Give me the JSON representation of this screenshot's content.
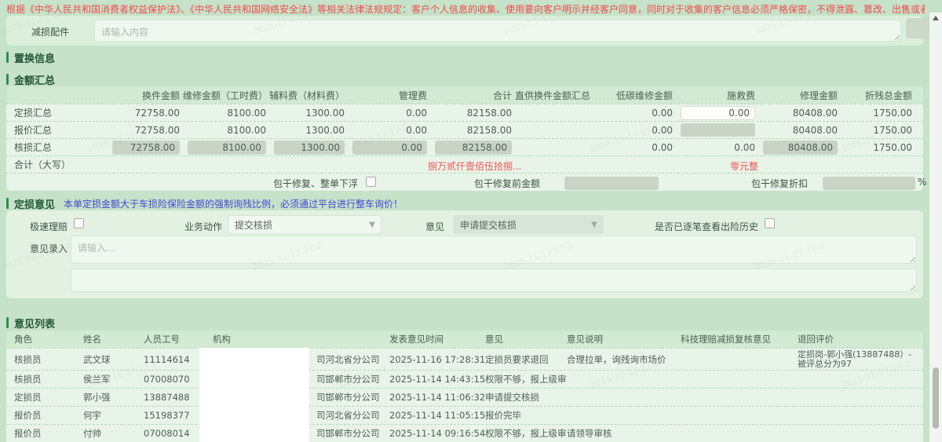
{
  "watermark": "2025-11-17 17:2",
  "top_notice": "根据《中华人民共和国消费者权益保护法》、《中华人民共和国网络安全法》等相关法律法规规定：客户个人信息的收集、使用要向客户明示并经客户同意，同时对于收集的客户信息必须严格保密，不得泄露、篡改、出售或者非法向他人提供。",
  "damage_parts": {
    "label": "减损配件",
    "placeholder": "请输入内容"
  },
  "sections": {
    "replace_info": "置换信息",
    "amount_summary": "金额汇总",
    "loss_opinion": "定损意见",
    "opinion_list": "意见列表"
  },
  "amount_summary": {
    "headers": [
      "",
      "换件金额",
      "维修金额（工时费）",
      "辅料费（材料费）",
      "管理费",
      "合计",
      "直供换件金额汇总",
      "低碳维修金额",
      "施救费",
      "修理金额",
      "折残总金额"
    ],
    "rows": [
      {
        "label": "定损汇总",
        "values": [
          "72758.00",
          "8100.00",
          "1300.00",
          "0.00",
          "82158.00",
          "",
          "0.00",
          "0.00",
          "80408.00",
          "1750.00"
        ],
        "styles": [
          "plain",
          "plain",
          "plain",
          "plain",
          "plain",
          "empty",
          "plain",
          "input",
          "plain",
          "plain"
        ]
      },
      {
        "label": "报价汇总",
        "values": [
          "72758.00",
          "8100.00",
          "1300.00",
          "0.00",
          "82158.00",
          "",
          "0.00",
          "",
          "80408.00",
          "1750.00"
        ],
        "styles": [
          "plain",
          "plain",
          "plain",
          "plain",
          "plain",
          "empty",
          "plain",
          "boxempty",
          "plain",
          "plain"
        ]
      },
      {
        "label": "核损汇总",
        "values": [
          "72758.00",
          "8100.00",
          "1300.00",
          "0.00",
          "82158.00",
          "",
          "0.00",
          "0.00",
          "80408.00",
          "1750.00"
        ],
        "styles": [
          "box",
          "box",
          "box",
          "box",
          "box",
          "empty",
          "plain",
          "plain",
          "box",
          "plain"
        ]
      }
    ],
    "total_row": {
      "label": "合计（大写）",
      "amount_cn": "捌万贰仟壹佰伍拾捌...",
      "residual_cn": "零元整"
    },
    "baogan": {
      "checkbox_label": "包干修复、整单下浮",
      "pre_amount_label": "包干修复前金额",
      "discount_label": "包干修复折扣",
      "percent": "%"
    }
  },
  "loss_opinion": {
    "warning": "本单定损金额大于车损险保险金额的强制询残比例，必须通过平台进行整车询价！",
    "express_label": "极速理赔",
    "action_label": "业务动作",
    "action_value": "提交核损",
    "opinion_label": "意见",
    "opinion_value": "申请提交核损",
    "history_label": "是否已逐笔查看出险历史",
    "entry_label": "意见录入",
    "entry_placeholder": "请输入..."
  },
  "opinion_list": {
    "headers": [
      "角色",
      "姓名",
      "人员工号",
      "机构",
      "发表意见时间",
      "意见",
      "意见说明",
      "科技理赔减损复核意见",
      "退回评价"
    ],
    "rows": [
      {
        "role": "核损员",
        "name": "武文球",
        "id": "11114614",
        "org": "司河北省分公司",
        "time": "2025-11-16 17:28:31",
        "opinion": "定损员要求退回",
        "note": "合理拉单，询残询市场价",
        "tech": "",
        "review": "定损岗-郭小强(13887488）-被评总分为97"
      },
      {
        "role": "核损员",
        "name": "侯兰军",
        "id": "07008070",
        "org": "司邯郸市分公司",
        "time": "2025-11-14 14:43:15",
        "opinion": "权限不够，报上级审核",
        "note": "",
        "tech": "",
        "review": ""
      },
      {
        "role": "定损员",
        "name": "郭小强",
        "id": "13887488",
        "org": "司邯郸市分公司",
        "time": "2025-11-14 11:06:32",
        "opinion": "申请提交核损",
        "note": "",
        "tech": "",
        "review": ""
      },
      {
        "role": "报价员",
        "name": "何宇",
        "id": "15198377",
        "org": "司河北省分公司",
        "time": "2025-11-14 11:05:15",
        "opinion": "报价完毕",
        "note": "",
        "tech": "",
        "review": ""
      },
      {
        "role": "报价员",
        "name": "付帅",
        "id": "07008014",
        "org": "司邯郸市分公司",
        "time": "2025-11-14 09:16:54",
        "opinion": "权限不够，报上级审核",
        "note": "请领导审核",
        "tech": "",
        "review": ""
      }
    ]
  },
  "colors": {
    "accent_green": "#2e8b57",
    "warning_red": "#f25555",
    "warning_blue": "#4545d6",
    "panel_green": "#e8f4e8"
  }
}
